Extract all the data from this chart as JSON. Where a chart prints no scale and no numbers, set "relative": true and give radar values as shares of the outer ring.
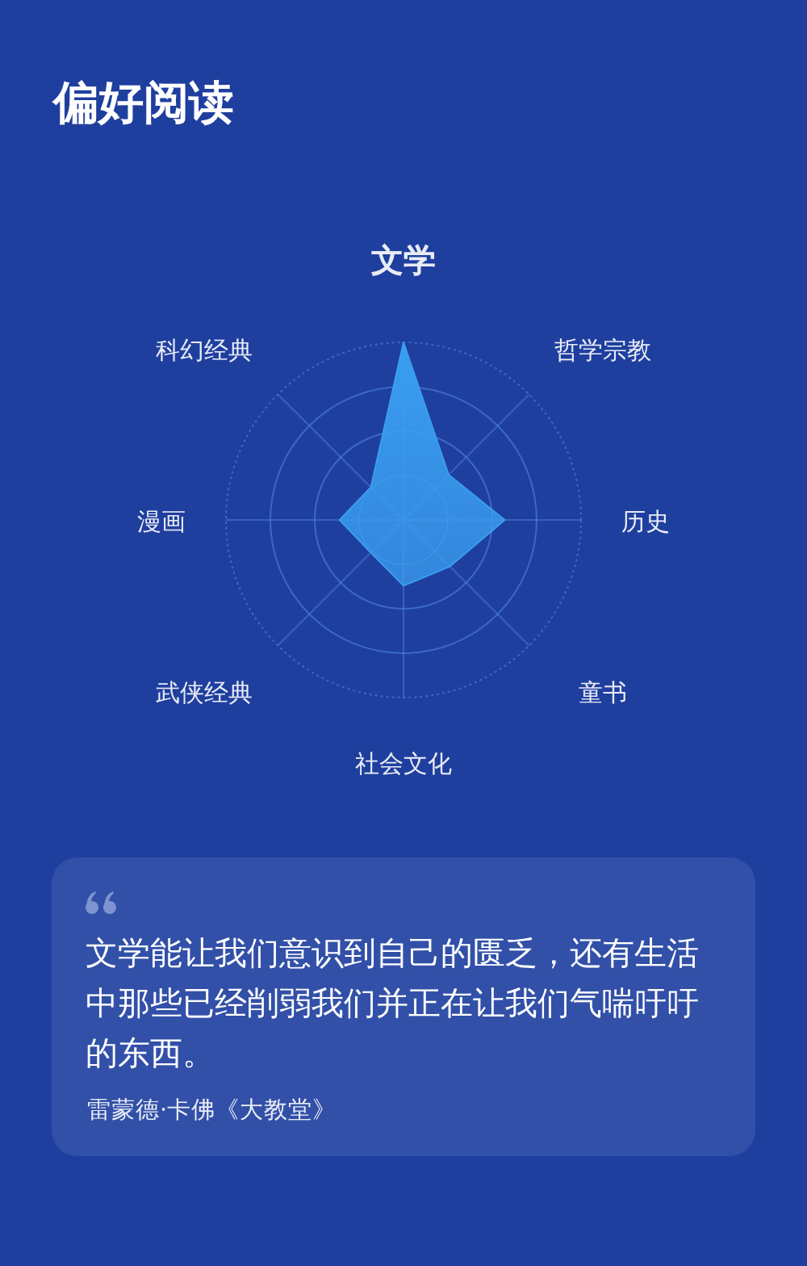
{
  "chart_data": {
    "type": "radar",
    "title": "偏好阅读",
    "relative": true,
    "grid": true,
    "categories": [
      "文学",
      "哲学宗教",
      "历史",
      "童书",
      "社会文化",
      "武侠经典",
      "漫画",
      "科幻经典"
    ],
    "series": [
      {
        "color": "#3a9ef0",
        "values": [
          1.0,
          0.36,
          0.57,
          0.37,
          0.37,
          0.26,
          0.36,
          0.26
        ]
      }
    ],
    "annotations": [
      "文学能让我们意识到自己的匮乏，还有生活中那些已经削弱我们并正在让我们气喘吁吁的东西。",
      "雷蒙德·卡佛《大教堂》"
    ]
  }
}
